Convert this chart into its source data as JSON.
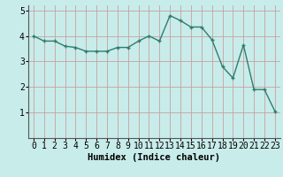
{
  "x": [
    0,
    1,
    2,
    3,
    4,
    5,
    6,
    7,
    8,
    9,
    10,
    11,
    12,
    13,
    14,
    15,
    16,
    17,
    18,
    19,
    20,
    21,
    22,
    23
  ],
  "y": [
    4.0,
    3.8,
    3.8,
    3.6,
    3.55,
    3.4,
    3.4,
    3.4,
    3.55,
    3.55,
    3.8,
    4.0,
    3.8,
    4.8,
    4.6,
    4.35,
    4.35,
    3.85,
    2.8,
    2.35,
    3.65,
    1.9,
    1.9,
    1.05
  ],
  "line_color": "#2e7d6e",
  "marker": "+",
  "bg_color": "#c8ecea",
  "grid_color": "#b0d8d4",
  "xlabel": "Humidex (Indice chaleur)",
  "ylim": [
    0,
    5.2
  ],
  "xlim": [
    -0.5,
    23.5
  ],
  "yticks": [
    1,
    2,
    3,
    4,
    5
  ],
  "xticks": [
    0,
    1,
    2,
    3,
    4,
    5,
    6,
    7,
    8,
    9,
    10,
    11,
    12,
    13,
    14,
    15,
    16,
    17,
    18,
    19,
    20,
    21,
    22,
    23
  ],
  "xlabel_fontsize": 7.5,
  "tick_fontsize": 7,
  "line_width": 1.0,
  "marker_size": 3.5
}
